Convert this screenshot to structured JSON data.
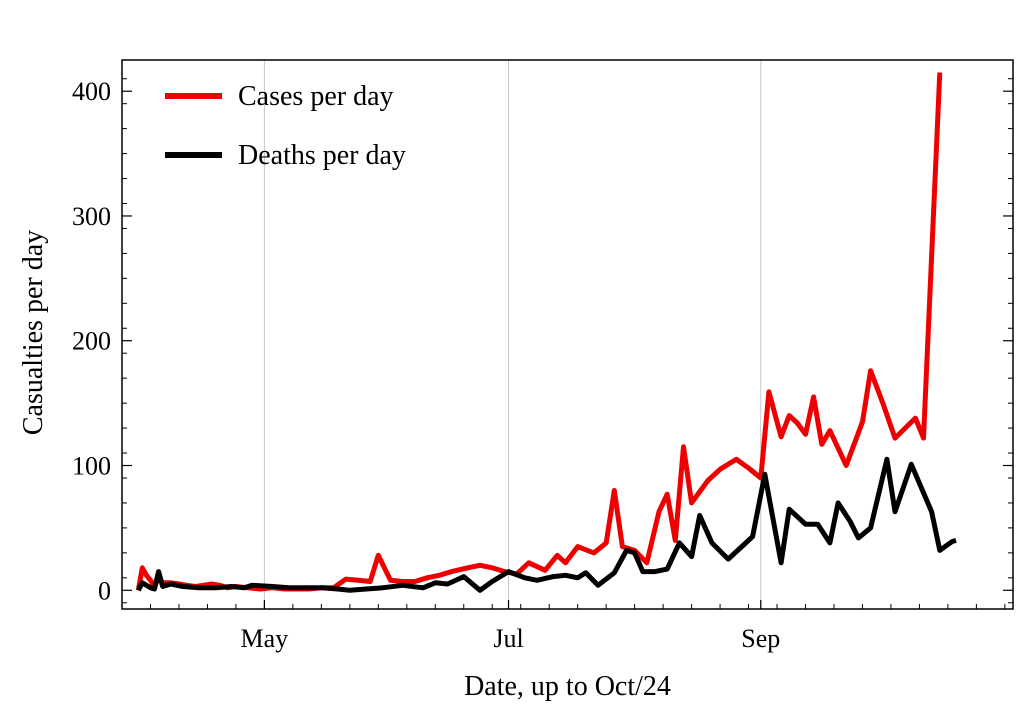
{
  "chart_data": {
    "type": "line",
    "title": "",
    "xlabel": "Date, up to Oct/24",
    "ylabel": "Casualties per day",
    "x_ticks": [
      {
        "label": "May",
        "day": 31
      },
      {
        "label": "Jul",
        "day": 91
      },
      {
        "label": "Sep",
        "day": 153
      }
    ],
    "xlim": [
      -4,
      215
    ],
    "ylim": [
      -15,
      425
    ],
    "y_ticks": [
      0,
      100,
      200,
      300,
      400
    ],
    "grid": "vertical lines at month ticks",
    "legend_position": "top-left",
    "series": [
      {
        "name": "Cases per day",
        "color": "#ee0000",
        "points": [
          [
            0,
            0
          ],
          [
            1,
            18
          ],
          [
            2,
            12
          ],
          [
            3,
            8
          ],
          [
            4,
            3
          ],
          [
            5,
            10
          ],
          [
            6,
            6
          ],
          [
            8,
            6
          ],
          [
            10,
            5
          ],
          [
            12,
            4
          ],
          [
            14,
            3
          ],
          [
            16,
            4
          ],
          [
            18,
            5
          ],
          [
            20,
            4
          ],
          [
            22,
            2
          ],
          [
            24,
            3
          ],
          [
            27,
            2
          ],
          [
            30,
            1
          ],
          [
            33,
            2
          ],
          [
            36,
            1
          ],
          [
            39,
            1
          ],
          [
            42,
            1
          ],
          [
            45,
            2
          ],
          [
            48,
            2
          ],
          [
            51,
            9
          ],
          [
            54,
            8
          ],
          [
            57,
            7
          ],
          [
            59,
            28
          ],
          [
            62,
            8
          ],
          [
            65,
            7
          ],
          [
            68,
            7
          ],
          [
            71,
            10
          ],
          [
            74,
            12
          ],
          [
            77,
            15
          ],
          [
            81,
            18
          ],
          [
            84,
            20
          ],
          [
            87,
            18
          ],
          [
            90,
            15
          ],
          [
            93,
            13
          ],
          [
            96,
            22
          ],
          [
            100,
            16
          ],
          [
            103,
            28
          ],
          [
            105,
            22
          ],
          [
            108,
            35
          ],
          [
            112,
            30
          ],
          [
            115,
            38
          ],
          [
            117,
            80
          ],
          [
            119,
            35
          ],
          [
            122,
            32
          ],
          [
            125,
            22
          ],
          [
            128,
            63
          ],
          [
            130,
            77
          ],
          [
            132,
            40
          ],
          [
            134,
            115
          ],
          [
            136,
            70
          ],
          [
            140,
            88
          ],
          [
            143,
            97
          ],
          [
            147,
            105
          ],
          [
            150,
            98
          ],
          [
            153,
            90
          ],
          [
            155,
            159
          ],
          [
            158,
            123
          ],
          [
            160,
            140
          ],
          [
            162,
            134
          ],
          [
            164,
            125
          ],
          [
            166,
            155
          ],
          [
            168,
            117
          ],
          [
            170,
            128
          ],
          [
            174,
            100
          ],
          [
            178,
            135
          ],
          [
            180,
            176
          ],
          [
            183,
            150
          ],
          [
            186,
            122
          ],
          [
            191,
            138
          ],
          [
            193,
            122
          ],
          [
            197,
            415
          ]
        ]
      },
      {
        "name": "Deaths per day",
        "color": "#000000",
        "points": [
          [
            0,
            0
          ],
          [
            1,
            6
          ],
          [
            3,
            2
          ],
          [
            4,
            1
          ],
          [
            5,
            15
          ],
          [
            6,
            3
          ],
          [
            8,
            5
          ],
          [
            11,
            3
          ],
          [
            15,
            2
          ],
          [
            19,
            2
          ],
          [
            23,
            3
          ],
          [
            26,
            2
          ],
          [
            28,
            4
          ],
          [
            33,
            3
          ],
          [
            37,
            2
          ],
          [
            41,
            2
          ],
          [
            45,
            2
          ],
          [
            49,
            1
          ],
          [
            52,
            0
          ],
          [
            56,
            1
          ],
          [
            60,
            2
          ],
          [
            65,
            4
          ],
          [
            70,
            2
          ],
          [
            73,
            6
          ],
          [
            76,
            5
          ],
          [
            80,
            11
          ],
          [
            84,
            0
          ],
          [
            87,
            7
          ],
          [
            91,
            15
          ],
          [
            95,
            10
          ],
          [
            98,
            8
          ],
          [
            102,
            11
          ],
          [
            105,
            12
          ],
          [
            108,
            10
          ],
          [
            110,
            14
          ],
          [
            113,
            4
          ],
          [
            117,
            14
          ],
          [
            120,
            32
          ],
          [
            122,
            30
          ],
          [
            124,
            15
          ],
          [
            127,
            15
          ],
          [
            130,
            17
          ],
          [
            133,
            38
          ],
          [
            136,
            27
          ],
          [
            138,
            60
          ],
          [
            141,
            38
          ],
          [
            145,
            25
          ],
          [
            149,
            37
          ],
          [
            151,
            43
          ],
          [
            154,
            93
          ],
          [
            158,
            22
          ],
          [
            160,
            65
          ],
          [
            164,
            53
          ],
          [
            167,
            53
          ],
          [
            170,
            38
          ],
          [
            172,
            70
          ],
          [
            175,
            55
          ],
          [
            177,
            42
          ],
          [
            180,
            50
          ],
          [
            184,
            105
          ],
          [
            186,
            63
          ],
          [
            190,
            101
          ],
          [
            195,
            63
          ],
          [
            197,
            32
          ],
          [
            200,
            39
          ],
          [
            201,
            40
          ]
        ]
      }
    ]
  }
}
